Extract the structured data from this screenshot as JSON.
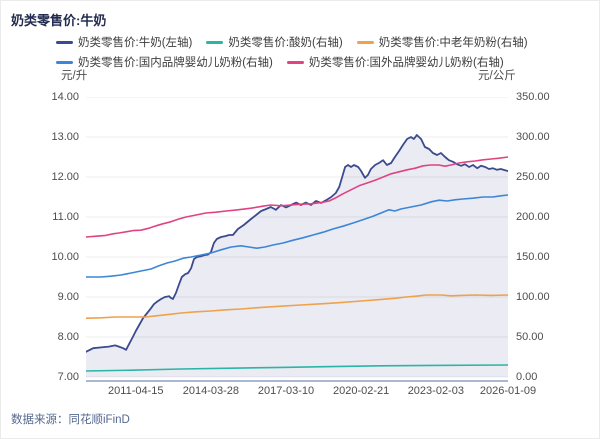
{
  "header": {
    "title": "奶类零售价:牛奶"
  },
  "legend": {
    "rows": [
      [
        {
          "label": "奶类零售价:牛奶(左轴)",
          "color": "#3C4A8E"
        },
        {
          "label": "奶类零售价:酸奶(右轴)",
          "color": "#2BB5A5"
        },
        {
          "label": "奶类零售价:中老年奶粉(右轴)",
          "color": "#EFA14B"
        }
      ],
      [
        {
          "label": "奶类零售价:国内品牌婴幼儿奶粉(右轴)",
          "color": "#3C86D8"
        },
        {
          "label": "奶类零售价:国外品牌婴幼儿奶粉(右轴)",
          "color": "#E04380"
        }
      ]
    ]
  },
  "footer": {
    "source": "数据来源：同花顺iFinD"
  },
  "chart_data": {
    "type": "line",
    "title": "奶类零售价:牛奶",
    "grid": true,
    "grid_color": "#ececec",
    "axis_line_color": "#a9b7d2",
    "left_axis": {
      "unit": "元/升",
      "min": 7,
      "max": 14,
      "ticks": [
        "14.00",
        "13.00",
        "12.00",
        "11.00",
        "10.00",
        "9.00",
        "8.00",
        "7.00"
      ]
    },
    "right_axis": {
      "unit": "元/公斤",
      "min": 0,
      "max": 350,
      "ticks": [
        "350.00",
        "300.00",
        "250.00",
        "200.00",
        "150.00",
        "100.00",
        "50.00",
        "0.00"
      ]
    },
    "x_axis": {
      "tick_labels": [
        "2011-04-15",
        "2014-03-28",
        "2017-03-10",
        "2020-02-21",
        "2023-02-03",
        "2026-01-09"
      ],
      "tick_pos": [
        0.118,
        0.296,
        0.474,
        0.652,
        0.829,
        1.0
      ]
    },
    "series": [
      {
        "name": "奶类零售价:牛奶(左轴)",
        "axis": "left",
        "color": "#3C4A8E",
        "width": 1.8,
        "area": true,
        "area_fill": "#6874A8",
        "area_opacity": 0.14,
        "points": [
          [
            0,
            7.63
          ],
          [
            0.017,
            7.72
          ],
          [
            0.036,
            7.74
          ],
          [
            0.054,
            7.76
          ],
          [
            0.069,
            7.79
          ],
          [
            0.078,
            7.76
          ],
          [
            0.088,
            7.72
          ],
          [
            0.095,
            7.68
          ],
          [
            0.102,
            7.82
          ],
          [
            0.111,
            8.0
          ],
          [
            0.118,
            8.15
          ],
          [
            0.126,
            8.3
          ],
          [
            0.135,
            8.47
          ],
          [
            0.145,
            8.6
          ],
          [
            0.154,
            8.72
          ],
          [
            0.161,
            8.82
          ],
          [
            0.168,
            8.88
          ],
          [
            0.178,
            8.95
          ],
          [
            0.187,
            9.0
          ],
          [
            0.197,
            9.02
          ],
          [
            0.201,
            8.98
          ],
          [
            0.206,
            8.95
          ],
          [
            0.213,
            9.1
          ],
          [
            0.22,
            9.3
          ],
          [
            0.227,
            9.5
          ],
          [
            0.235,
            9.57
          ],
          [
            0.242,
            9.6
          ],
          [
            0.249,
            9.72
          ],
          [
            0.256,
            9.95
          ],
          [
            0.263,
            10.0
          ],
          [
            0.273,
            10.02
          ],
          [
            0.282,
            10.05
          ],
          [
            0.289,
            10.06
          ],
          [
            0.296,
            10.12
          ],
          [
            0.303,
            10.35
          ],
          [
            0.31,
            10.45
          ],
          [
            0.32,
            10.5
          ],
          [
            0.329,
            10.52
          ],
          [
            0.339,
            10.55
          ],
          [
            0.348,
            10.55
          ],
          [
            0.36,
            10.7
          ],
          [
            0.374,
            10.8
          ],
          [
            0.391,
            10.95
          ],
          [
            0.403,
            11.05
          ],
          [
            0.415,
            11.15
          ],
          [
            0.427,
            11.2
          ],
          [
            0.438,
            11.25
          ],
          [
            0.45,
            11.18
          ],
          [
            0.462,
            11.3
          ],
          [
            0.474,
            11.24
          ],
          [
            0.486,
            11.3
          ],
          [
            0.498,
            11.36
          ],
          [
            0.509,
            11.3
          ],
          [
            0.521,
            11.36
          ],
          [
            0.533,
            11.3
          ],
          [
            0.545,
            11.4
          ],
          [
            0.557,
            11.35
          ],
          [
            0.569,
            11.42
          ],
          [
            0.581,
            11.5
          ],
          [
            0.592,
            11.6
          ],
          [
            0.6,
            11.75
          ],
          [
            0.607,
            12.0
          ],
          [
            0.614,
            12.25
          ],
          [
            0.621,
            12.3
          ],
          [
            0.628,
            12.25
          ],
          [
            0.635,
            12.3
          ],
          [
            0.645,
            12.25
          ],
          [
            0.652,
            12.15
          ],
          [
            0.661,
            11.98
          ],
          [
            0.668,
            12.05
          ],
          [
            0.675,
            12.2
          ],
          [
            0.685,
            12.3
          ],
          [
            0.694,
            12.35
          ],
          [
            0.704,
            12.42
          ],
          [
            0.713,
            12.3
          ],
          [
            0.723,
            12.35
          ],
          [
            0.732,
            12.5
          ],
          [
            0.742,
            12.65
          ],
          [
            0.751,
            12.8
          ],
          [
            0.761,
            12.95
          ],
          [
            0.77,
            13.0
          ],
          [
            0.777,
            12.95
          ],
          [
            0.784,
            13.05
          ],
          [
            0.794,
            12.95
          ],
          [
            0.803,
            12.75
          ],
          [
            0.813,
            12.7
          ],
          [
            0.822,
            12.6
          ],
          [
            0.832,
            12.55
          ],
          [
            0.841,
            12.6
          ],
          [
            0.851,
            12.5
          ],
          [
            0.86,
            12.42
          ],
          [
            0.87,
            12.38
          ],
          [
            0.879,
            12.32
          ],
          [
            0.889,
            12.28
          ],
          [
            0.898,
            12.32
          ],
          [
            0.908,
            12.25
          ],
          [
            0.917,
            12.3
          ],
          [
            0.927,
            12.22
          ],
          [
            0.936,
            12.28
          ],
          [
            0.946,
            12.25
          ],
          [
            0.955,
            12.2
          ],
          [
            0.964,
            12.22
          ],
          [
            0.974,
            12.18
          ],
          [
            0.983,
            12.2
          ],
          [
            0.993,
            12.17
          ],
          [
            1,
            12.15
          ]
        ]
      },
      {
        "name": "奶类零售价:酸奶(右轴)",
        "axis": "right",
        "color": "#2BB5A5",
        "width": 1.6,
        "area": false,
        "points": [
          [
            0,
            7.5
          ],
          [
            0.107,
            8.5
          ],
          [
            0.225,
            10
          ],
          [
            0.344,
            11
          ],
          [
            0.462,
            12
          ],
          [
            0.581,
            13
          ],
          [
            0.699,
            14
          ],
          [
            0.818,
            14.5
          ],
          [
            1,
            15
          ]
        ]
      },
      {
        "name": "奶类零售价:中老年奶粉(右轴)",
        "axis": "right",
        "color": "#EFA14B",
        "width": 1.6,
        "area": false,
        "points": [
          [
            0,
            73.5
          ],
          [
            0.036,
            74
          ],
          [
            0.071,
            75
          ],
          [
            0.107,
            75
          ],
          [
            0.142,
            75
          ],
          [
            0.166,
            76.5
          ],
          [
            0.194,
            78
          ],
          [
            0.225,
            80
          ],
          [
            0.261,
            81.5
          ],
          [
            0.296,
            82.5
          ],
          [
            0.332,
            84
          ],
          [
            0.367,
            85
          ],
          [
            0.415,
            87
          ],
          [
            0.462,
            88.5
          ],
          [
            0.509,
            90
          ],
          [
            0.557,
            91.5
          ],
          [
            0.604,
            93
          ],
          [
            0.652,
            95
          ],
          [
            0.699,
            97
          ],
          [
            0.735,
            98.5
          ],
          [
            0.758,
            100
          ],
          [
            0.782,
            101
          ],
          [
            0.806,
            102.5
          ],
          [
            0.841,
            102.5
          ],
          [
            0.865,
            101.5
          ],
          [
            0.889,
            102
          ],
          [
            0.924,
            102.5
          ],
          [
            0.96,
            102
          ],
          [
            1,
            102.5
          ]
        ]
      },
      {
        "name": "奶类零售价:国内品牌婴幼儿奶粉(右轴)",
        "axis": "right",
        "color": "#3C86D8",
        "width": 1.6,
        "area": false,
        "points": [
          [
            0,
            125
          ],
          [
            0.036,
            125
          ],
          [
            0.059,
            126
          ],
          [
            0.083,
            127.5
          ],
          [
            0.107,
            130
          ],
          [
            0.13,
            132.5
          ],
          [
            0.154,
            135
          ],
          [
            0.173,
            139
          ],
          [
            0.192,
            142.5
          ],
          [
            0.211,
            145
          ],
          [
            0.23,
            148.5
          ],
          [
            0.249,
            150
          ],
          [
            0.273,
            152.5
          ],
          [
            0.296,
            155
          ],
          [
            0.32,
            159
          ],
          [
            0.344,
            162.5
          ],
          [
            0.367,
            164
          ],
          [
            0.386,
            162.5
          ],
          [
            0.405,
            161
          ],
          [
            0.424,
            162.5
          ],
          [
            0.443,
            165
          ],
          [
            0.467,
            167.5
          ],
          [
            0.491,
            171
          ],
          [
            0.514,
            174
          ],
          [
            0.538,
            177.5
          ],
          [
            0.562,
            181
          ],
          [
            0.585,
            185
          ],
          [
            0.609,
            188.5
          ],
          [
            0.633,
            192.5
          ],
          [
            0.656,
            196.5
          ],
          [
            0.68,
            201
          ],
          [
            0.699,
            205
          ],
          [
            0.718,
            209
          ],
          [
            0.732,
            207.5
          ],
          [
            0.746,
            210
          ],
          [
            0.77,
            212.5
          ],
          [
            0.794,
            215
          ],
          [
            0.818,
            219
          ],
          [
            0.837,
            221
          ],
          [
            0.856,
            220
          ],
          [
            0.874,
            221.5
          ],
          [
            0.893,
            222.5
          ],
          [
            0.917,
            223.5
          ],
          [
            0.941,
            225
          ],
          [
            0.964,
            225
          ],
          [
            0.983,
            226.5
          ],
          [
            1,
            227.5
          ]
        ]
      },
      {
        "name": "奶类零售价:国外品牌婴幼儿奶粉(右轴)",
        "axis": "right",
        "color": "#E04380",
        "width": 1.6,
        "area": false,
        "points": [
          [
            0,
            175
          ],
          [
            0.024,
            176
          ],
          [
            0.047,
            177
          ],
          [
            0.064,
            179
          ],
          [
            0.078,
            180
          ],
          [
            0.095,
            181.5
          ],
          [
            0.111,
            183
          ],
          [
            0.13,
            183.5
          ],
          [
            0.149,
            186
          ],
          [
            0.166,
            189
          ],
          [
            0.182,
            191.5
          ],
          [
            0.201,
            194
          ],
          [
            0.22,
            197.5
          ],
          [
            0.237,
            200
          ],
          [
            0.261,
            202.5
          ],
          [
            0.284,
            205
          ],
          [
            0.308,
            206
          ],
          [
            0.332,
            207.5
          ],
          [
            0.36,
            209
          ],
          [
            0.391,
            211
          ],
          [
            0.419,
            213.5
          ],
          [
            0.438,
            215
          ],
          [
            0.462,
            214
          ],
          [
            0.486,
            215
          ],
          [
            0.509,
            216
          ],
          [
            0.533,
            216.5
          ],
          [
            0.557,
            218
          ],
          [
            0.576,
            220
          ],
          [
            0.592,
            224
          ],
          [
            0.609,
            229
          ],
          [
            0.628,
            234
          ],
          [
            0.647,
            239
          ],
          [
            0.666,
            242.5
          ],
          [
            0.685,
            246
          ],
          [
            0.704,
            250
          ],
          [
            0.723,
            254
          ],
          [
            0.742,
            256.5
          ],
          [
            0.761,
            259
          ],
          [
            0.78,
            261
          ],
          [
            0.799,
            264
          ],
          [
            0.817,
            265
          ],
          [
            0.836,
            265
          ],
          [
            0.851,
            263.5
          ],
          [
            0.865,
            265
          ],
          [
            0.884,
            267.5
          ],
          [
            0.903,
            269
          ],
          [
            0.922,
            270
          ],
          [
            0.941,
            271.5
          ],
          [
            0.96,
            272.5
          ],
          [
            0.979,
            273.5
          ],
          [
            1,
            275
          ]
        ]
      }
    ]
  }
}
